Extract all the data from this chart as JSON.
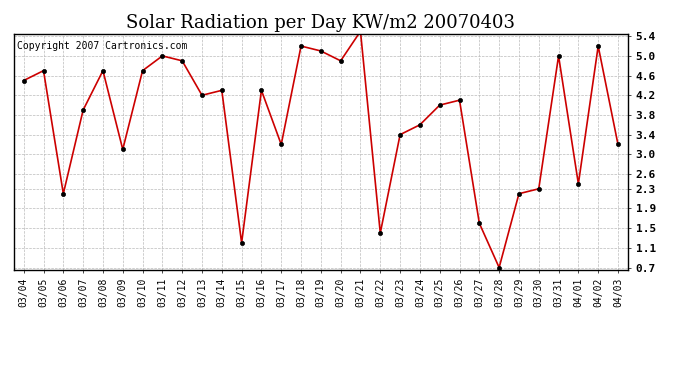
{
  "title": "Solar Radiation per Day KW/m2 20070403",
  "copyright_text": "Copyright 2007 Cartronics.com",
  "dates": [
    "03/04",
    "03/05",
    "03/06",
    "03/07",
    "03/08",
    "03/09",
    "03/10",
    "03/11",
    "03/12",
    "03/13",
    "03/14",
    "03/15",
    "03/16",
    "03/17",
    "03/18",
    "03/19",
    "03/20",
    "03/21",
    "03/22",
    "03/23",
    "03/24",
    "03/25",
    "03/26",
    "03/27",
    "03/28",
    "03/29",
    "03/30",
    "03/31",
    "04/01",
    "04/02",
    "04/03"
  ],
  "values": [
    4.5,
    4.7,
    2.2,
    3.9,
    4.7,
    3.1,
    4.7,
    5.0,
    4.9,
    4.2,
    4.3,
    1.2,
    4.3,
    3.2,
    5.2,
    5.1,
    4.9,
    5.5,
    1.4,
    3.4,
    3.6,
    4.0,
    4.1,
    1.6,
    0.7,
    2.2,
    2.3,
    5.0,
    2.4,
    5.2,
    3.2
  ],
  "line_color": "#cc0000",
  "marker": "o",
  "marker_size": 3,
  "ylim_min": 0.7,
  "ylim_max": 5.4,
  "yticks": [
    0.7,
    1.1,
    1.5,
    1.9,
    2.3,
    2.6,
    3.0,
    3.4,
    3.8,
    4.2,
    4.6,
    5.0,
    5.4
  ],
  "bg_color": "#ffffff",
  "grid_color": "#bbbbbb",
  "title_fontsize": 13,
  "copyright_fontsize": 7,
  "tick_fontsize": 8,
  "xtick_fontsize": 7
}
